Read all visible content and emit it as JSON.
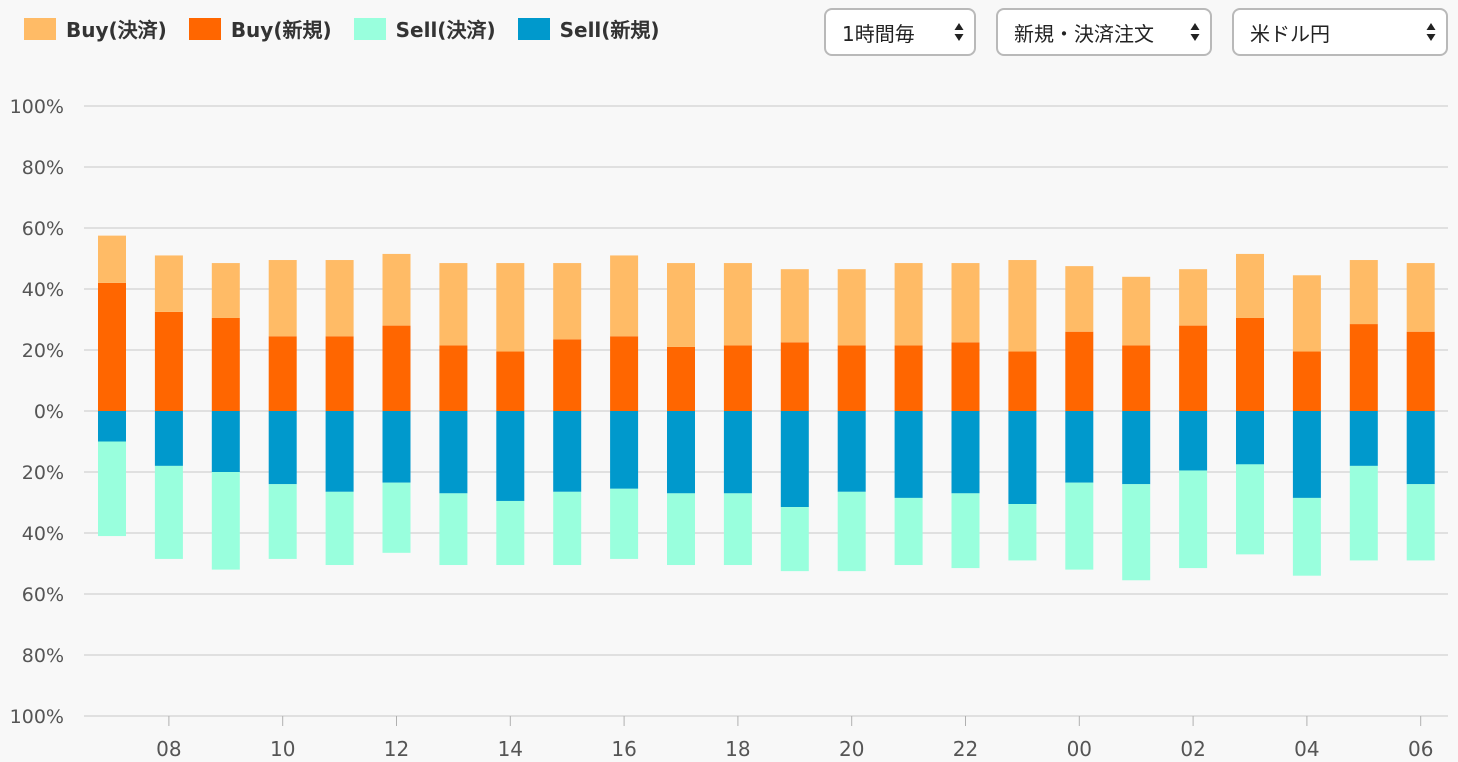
{
  "legend": {
    "items": [
      {
        "label": "Buy(決済)",
        "color": "#FFBB66"
      },
      {
        "label": "Buy(新規)",
        "color": "#FF6600"
      },
      {
        "label": "Sell(決済)",
        "color": "#99FFDD"
      },
      {
        "label": "Sell(新規)",
        "color": "#0099CC"
      }
    ]
  },
  "controls": {
    "period": "1時間毎",
    "order_type": "新規・決済注文",
    "currency_pair": "米ドル円"
  },
  "chart_data": {
    "type": "bar",
    "stacked": true,
    "diverging": true,
    "y_tick_labels": [
      "100%",
      "80%",
      "60%",
      "40%",
      "20%",
      "0%",
      "20%",
      "40%",
      "60%",
      "80%",
      "100%"
    ],
    "ylim": [
      -100,
      100
    ],
    "x_tick_labels": [
      "08",
      "10",
      "12",
      "14",
      "16",
      "18",
      "20",
      "22",
      "00",
      "02",
      "04",
      "06"
    ],
    "grid": true,
    "categories": [
      "07",
      "08",
      "09",
      "10",
      "11",
      "12",
      "13",
      "14",
      "15",
      "16",
      "17",
      "18",
      "19",
      "20",
      "21",
      "22",
      "23",
      "00",
      "01",
      "02",
      "03",
      "04",
      "05",
      "06"
    ],
    "series": [
      {
        "name": "Buy(新規)",
        "color": "#FF6600",
        "values": [
          42,
          32.5,
          30.5,
          24.5,
          24.5,
          28,
          21.5,
          19.5,
          23.5,
          24.5,
          21,
          21.5,
          22.5,
          21.5,
          21.5,
          22.5,
          19.5,
          26,
          21.5,
          28,
          30.5,
          19.5,
          28.5,
          26
        ]
      },
      {
        "name": "Buy(決済)",
        "color": "#FFBB66",
        "values": [
          15.5,
          18.5,
          18,
          25,
          25,
          23.5,
          27,
          29,
          25,
          26.5,
          27.5,
          27,
          24,
          25,
          27,
          26,
          30,
          21.5,
          22.5,
          18.5,
          21,
          25,
          21,
          22.5
        ]
      },
      {
        "name": "Sell(新規)",
        "color": "#0099CC",
        "values": [
          -10,
          -18,
          -20,
          -24,
          -26.5,
          -23.5,
          -27,
          -29.5,
          -26.5,
          -25.5,
          -27,
          -27,
          -31.5,
          -26.5,
          -28.5,
          -27,
          -30.5,
          -23.5,
          -24,
          -19.5,
          -17.5,
          -28.5,
          -18,
          -24
        ]
      },
      {
        "name": "Sell(決済)",
        "color": "#99FFDD",
        "values": [
          -31,
          -30.5,
          -32,
          -24.5,
          -24,
          -23,
          -23.5,
          -21,
          -24,
          -23,
          -23.5,
          -23.5,
          -21,
          -26,
          -22,
          -24.5,
          -18.5,
          -28.5,
          -31.5,
          -32,
          -29.5,
          -25.5,
          -31,
          -25
        ]
      }
    ]
  }
}
